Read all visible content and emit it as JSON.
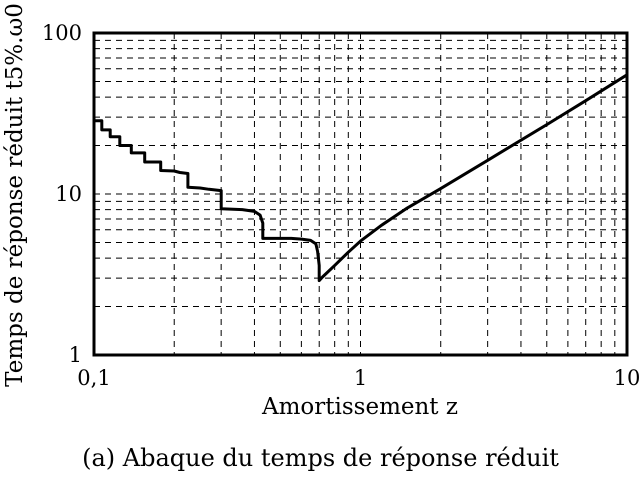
{
  "caption": "(a) Abaque du temps de réponse réduit",
  "chart_data": {
    "type": "line",
    "xlabel": "Amortissement z",
    "ylabel": "Temps de réponse réduit t5%.ω0",
    "xscale": "log",
    "yscale": "log",
    "xlim": [
      0.1,
      10
    ],
    "ylim": [
      1,
      100
    ],
    "grid": true,
    "xticks": [
      {
        "value": 0.1,
        "label": "0,1"
      },
      {
        "value": 1,
        "label": "1"
      },
      {
        "value": 10,
        "label": "10"
      }
    ],
    "yticks": [
      {
        "value": 1,
        "label": "1"
      },
      {
        "value": 10,
        "label": "10"
      },
      {
        "value": 100,
        "label": "100"
      }
    ],
    "series": [
      {
        "color": "#000000",
        "x": [
          0.1,
          0.1,
          0.107,
          0.107,
          0.115,
          0.115,
          0.125,
          0.125,
          0.138,
          0.138,
          0.155,
          0.155,
          0.178,
          0.178,
          0.2,
          0.21,
          0.225,
          0.225,
          0.25,
          0.27,
          0.3,
          0.3,
          0.36,
          0.4,
          0.42,
          0.43,
          0.43,
          0.5,
          0.55,
          0.6,
          0.65,
          0.68,
          0.69,
          0.7,
          0.7,
          0.72,
          0.8,
          0.9,
          1.0,
          1.2,
          1.5,
          2.0,
          3.0,
          5.0,
          7.0,
          10.0
        ],
        "y": [
          30,
          28.5,
          28.5,
          25,
          25,
          22.7,
          22.7,
          20,
          20,
          18,
          18,
          15.8,
          15.8,
          14,
          13.9,
          13.6,
          13.4,
          11,
          10.9,
          10.7,
          10.5,
          8.1,
          8,
          7.8,
          7.4,
          6.6,
          5.3,
          5.3,
          5.3,
          5.25,
          5.15,
          4.9,
          4.4,
          3.6,
          2.9,
          3.05,
          3.6,
          4.35,
          5.1,
          6.4,
          8.2,
          10.8,
          16.2,
          27,
          38,
          55
        ]
      }
    ]
  }
}
